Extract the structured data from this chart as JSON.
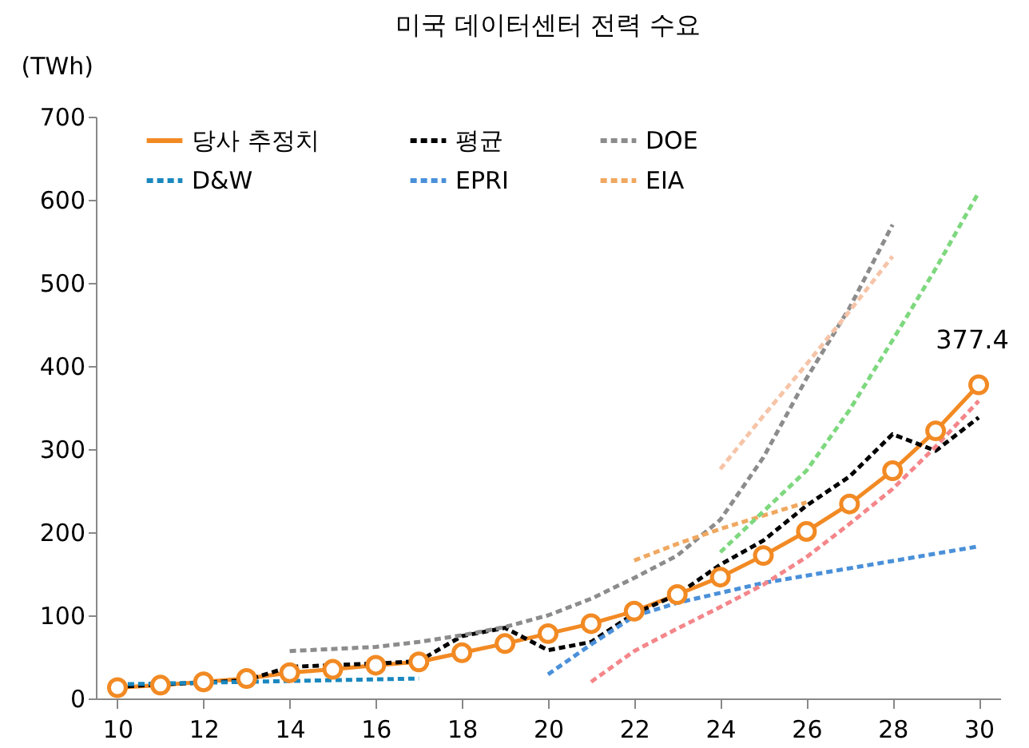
{
  "chart_data": {
    "type": "line",
    "title": "미국 데이터센터 전력 수요",
    "ylabel": "(TWh)",
    "legend": "top",
    "xlim": [
      9.5,
      30.5
    ],
    "xticks": [
      10,
      12,
      14,
      16,
      18,
      20,
      22,
      24,
      26,
      28,
      30
    ],
    "ylim": [
      0,
      700
    ],
    "yticks": [
      0,
      100,
      200,
      300,
      400,
      500,
      600,
      700
    ],
    "series": [
      {
        "name": "당사 추정치",
        "color": "#f28a24",
        "line_style": "solid",
        "marker": "circle",
        "x": [
          10,
          11,
          12,
          13,
          14,
          15,
          16,
          17,
          18,
          19,
          20,
          21,
          22,
          23,
          24,
          25,
          26,
          27,
          28,
          29,
          30
        ],
        "values": [
          13,
          16,
          20,
          24,
          31,
          35,
          40,
          44,
          55,
          66,
          78,
          90,
          105,
          125,
          146,
          172,
          201,
          234,
          274,
          322,
          377.4
        ],
        "value_labels": [
          null,
          null,
          null,
          null,
          null,
          null,
          null,
          null,
          null,
          null,
          null,
          null,
          null,
          null,
          null,
          null,
          null,
          null,
          null,
          null,
          "377.4"
        ]
      },
      {
        "name": "평균",
        "color": "#000000",
        "line_style": "dashed",
        "x": [
          10,
          11,
          12,
          13,
          14,
          15,
          16,
          17,
          18,
          19,
          20,
          21,
          22,
          23,
          24,
          25,
          26,
          27,
          28,
          29,
          30
        ],
        "values": [
          14,
          17,
          19,
          22,
          38,
          40,
          42,
          45,
          75,
          85,
          58,
          68,
          102,
          125,
          161,
          190,
          232,
          267,
          318,
          298,
          338
        ]
      },
      {
        "name": "DOE",
        "color": "#8c8c8c",
        "line_style": "dashed",
        "x": [
          14,
          16,
          17,
          18,
          19,
          20,
          21,
          22,
          23,
          24,
          25,
          26,
          27,
          28
        ],
        "values": [
          57,
          62,
          68,
          76,
          86,
          100,
          120,
          145,
          172,
          215,
          290,
          385,
          470,
          570
        ]
      },
      {
        "name": "D&W",
        "color": "#1a88bf",
        "line_style": "dashed",
        "x": [
          10,
          13,
          14,
          17
        ],
        "values": [
          17,
          20,
          21,
          24
        ]
      },
      {
        "name": "EPRI",
        "color": "#4a90d9",
        "line_style": "dashed",
        "x": [
          20,
          21,
          22,
          23,
          25,
          30
        ],
        "values": [
          29,
          65,
          99,
          115,
          139,
          183
        ]
      },
      {
        "color": "#f4868a",
        "line_style": "dashed",
        "x": [
          21,
          22,
          23,
          24,
          25,
          26,
          27,
          28,
          29,
          30
        ],
        "values": [
          20,
          57,
          84,
          110,
          137,
          170,
          210,
          252,
          303,
          358
        ]
      },
      {
        "name": "EIA",
        "color": "#f0a860",
        "line_style": "dashed",
        "x": [
          22,
          23,
          24,
          25,
          26
        ],
        "values": [
          166,
          186,
          204,
          220,
          236
        ]
      },
      {
        "color": "#f6c4a8",
        "line_style": "dashed",
        "x": [
          24,
          25,
          26,
          27,
          28
        ],
        "values": [
          276,
          340,
          402,
          466,
          532
        ]
      },
      {
        "color": "#7ed87e",
        "line_style": "dashed",
        "x": [
          24,
          25,
          26,
          27,
          28,
          29,
          30
        ],
        "values": [
          176,
          225,
          274,
          347,
          431,
          517,
          609
        ]
      }
    ]
  }
}
